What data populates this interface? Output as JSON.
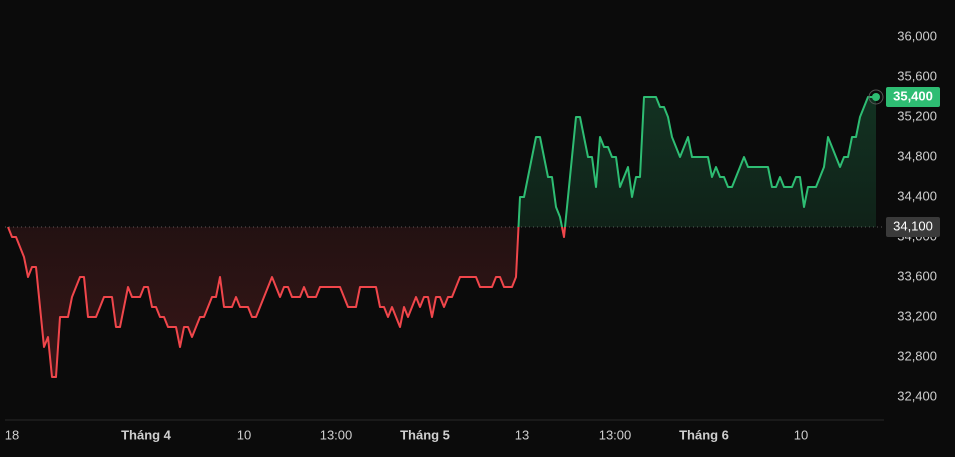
{
  "chart_data": {
    "type": "line",
    "values": [
      34100,
      34000,
      34000,
      33900,
      33800,
      33600,
      33700,
      33700,
      33300,
      32900,
      33000,
      32600,
      32600,
      33200,
      33200,
      33200,
      33400,
      33500,
      33600,
      33600,
      33200,
      33200,
      33200,
      33300,
      33400,
      33400,
      33400,
      33100,
      33100,
      33300,
      33500,
      33400,
      33400,
      33400,
      33500,
      33500,
      33300,
      33300,
      33200,
      33200,
      33100,
      33100,
      33100,
      32900,
      33100,
      33100,
      33000,
      33100,
      33200,
      33200,
      33300,
      33400,
      33400,
      33600,
      33300,
      33300,
      33300,
      33400,
      33300,
      33300,
      33300,
      33200,
      33200,
      33300,
      33400,
      33500,
      33600,
      33500,
      33400,
      33500,
      33500,
      33400,
      33400,
      33400,
      33500,
      33400,
      33400,
      33400,
      33500,
      33500,
      33500,
      33500,
      33500,
      33500,
      33400,
      33300,
      33300,
      33300,
      33500,
      33500,
      33500,
      33500,
      33500,
      33300,
      33300,
      33200,
      33300,
      33200,
      33100,
      33300,
      33200,
      33300,
      33400,
      33300,
      33400,
      33400,
      33200,
      33400,
      33400,
      33300,
      33400,
      33400,
      33500,
      33600,
      33600,
      33600,
      33600,
      33600,
      33500,
      33500,
      33500,
      33500,
      33600,
      33600,
      33500,
      33500,
      33500,
      33600,
      34400,
      34400,
      34600,
      34800,
      35000,
      35000,
      34800,
      34600,
      34600,
      34300,
      34200,
      34000,
      34400,
      34800,
      35200,
      35200,
      35000,
      34800,
      34800,
      34500,
      35000,
      34900,
      34900,
      34800,
      34800,
      34500,
      34600,
      34700,
      34400,
      34600,
      34600,
      35400,
      35400,
      35400,
      35400,
      35300,
      35300,
      35200,
      35000,
      34900,
      34800,
      34900,
      35000,
      34800,
      34800,
      34800,
      34800,
      34800,
      34600,
      34700,
      34600,
      34600,
      34500,
      34500,
      34600,
      34700,
      34800,
      34700,
      34700,
      34700,
      34700,
      34700,
      34700,
      34500,
      34500,
      34600,
      34500,
      34500,
      34500,
      34600,
      34600,
      34300,
      34500,
      34500,
      34500,
      34600,
      34700,
      35000,
      34900,
      34800,
      34700,
      34800,
      34800,
      35000,
      35000,
      35200,
      35300,
      35400,
      35400,
      35400
    ],
    "up_color": "#2ebd73",
    "down_color": "#f0464b",
    "baseline": {
      "value": 34100,
      "label": "34,100"
    },
    "last_price": {
      "value": 35400,
      "label": "35,400"
    },
    "xlim": [
      0,
      219
    ],
    "xticks": [
      {
        "value": 1,
        "label": "18"
      },
      {
        "value": 34.5,
        "label": "Tháng 4"
      },
      {
        "value": 59,
        "label": "10"
      },
      {
        "value": 82,
        "label": "13:00"
      },
      {
        "value": 104.25,
        "label": "Tháng 5"
      },
      {
        "value": 128.5,
        "label": "13"
      },
      {
        "value": 151.75,
        "label": "13:00"
      },
      {
        "value": 174,
        "label": "Tháng 6"
      },
      {
        "value": 198.25,
        "label": "10"
      }
    ],
    "ylim": [
      31970,
      36370
    ],
    "yticks": [
      {
        "value": 32400,
        "label": "32,400"
      },
      {
        "value": 32800,
        "label": "32,800"
      },
      {
        "value": 33200,
        "label": "33,200"
      },
      {
        "value": 33600,
        "label": "33,600"
      },
      {
        "value": 34000,
        "label": "34,000"
      },
      {
        "value": 34400,
        "label": "34,400"
      },
      {
        "value": 34800,
        "label": "34,800"
      },
      {
        "value": 35200,
        "label": "35,200"
      },
      {
        "value": 35600,
        "label": "35,600"
      },
      {
        "value": 36000,
        "label": "36,000"
      }
    ]
  }
}
